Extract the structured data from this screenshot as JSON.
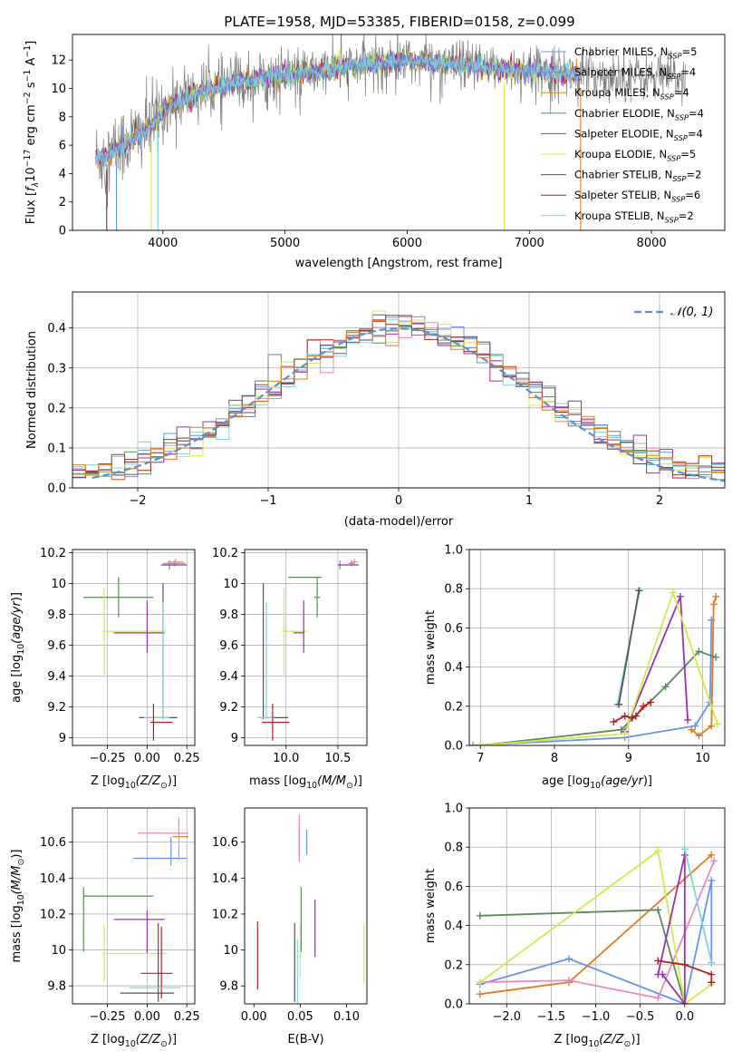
{
  "figure_title": "PLATE=1958, MJD=53385, FIBERID=0158, z=0.099",
  "colors": {
    "c_miles": "#6495ED",
    "s_miles": "#E07A1F",
    "k_miles": "#E8890C",
    "c_elodie": "#5C8A5C",
    "s_elodie": "#9B30B0",
    "k_elodie": "#D4E84A",
    "c_stelib": "#555555",
    "s_stelib": "#B22222",
    "k_stelib": "#7FD4DD",
    "data": "#808080",
    "normal": "#5B8FD6",
    "pink": "#E888C0"
  },
  "chart_data": [
    {
      "id": "spectrum",
      "type": "line",
      "xlabel": "wavelength [Angstrom, rest frame]",
      "ylabel": "Flux [fλ10⁻¹⁷ erg cm⁻² s⁻¹ A⁻¹]",
      "xlim": [
        3260,
        8600
      ],
      "ylim": [
        0,
        13.8
      ],
      "xticks": [
        4000,
        5000,
        6000,
        7000,
        8000
      ],
      "yticks": [
        0,
        2,
        4,
        6,
        8,
        10,
        12
      ],
      "continuum": {
        "x": [
          3450,
          3550,
          3700,
          3900,
          4000,
          4200,
          4400,
          4600,
          4800,
          5000,
          5200,
          5500,
          5800,
          6000,
          6300,
          6600,
          7000,
          7400
        ],
        "y": [
          5.1,
          5.3,
          6.2,
          7.3,
          8.5,
          9.4,
          10.0,
          10.4,
          10.7,
          10.9,
          11.1,
          11.5,
          11.8,
          12.0,
          11.7,
          11.5,
          11.3,
          11.0
        ]
      },
      "model_end": 7420,
      "data_end": 8280,
      "legend": [
        {
          "label": "Chabrier MILES, N",
          "sub": "SSP",
          "val": "=5"
        },
        {
          "label": "Salpeter MILES, N",
          "sub": "SSP",
          "val": "=4"
        },
        {
          "label": "Kroupa MILES, N",
          "sub": "SSP",
          "val": "=4"
        },
        {
          "label": "Chabrier ELODIE, N",
          "sub": "SSP",
          "val": "=4"
        },
        {
          "label": "Salpeter ELODIE, N",
          "sub": "SSP",
          "val": "=4"
        },
        {
          "label": "Kroupa ELODIE, N",
          "sub": "SSP",
          "val": "=5"
        },
        {
          "label": "Chabrier STELIB, N",
          "sub": "SSP",
          "val": "=2"
        },
        {
          "label": "Salpeter STELIB, N",
          "sub": "SSP",
          "val": "=6"
        },
        {
          "label": "Kroupa STELIB, N",
          "sub": "SSP",
          "val": "=2"
        }
      ]
    },
    {
      "id": "residuals",
      "type": "line",
      "xlabel": "(data-model)/error",
      "ylabel": "Normed distribution",
      "xlim": [
        -2.5,
        2.5
      ],
      "ylim": [
        0,
        0.49
      ],
      "xticks": [
        -2,
        -1,
        0,
        1,
        2
      ],
      "xticklabels": [
        "−2",
        "−1",
        "0",
        "1",
        "2"
      ],
      "yticks": [
        0.0,
        0.1,
        0.2,
        0.3,
        0.4
      ],
      "yticklabels": [
        "0.0",
        "0.1",
        "0.2",
        "0.3",
        "0.4"
      ],
      "grid": true,
      "legend": "𝒩(0, 1)",
      "bin_width": 0.1
    },
    {
      "id": "age_vs_Z",
      "type": "scatter",
      "xlabel": "Z [log₁₀(Z/Z⊙)]",
      "ylabel": "age  [log₁₀(age/yr)]",
      "xlim": [
        -0.47,
        0.3
      ],
      "ylim": [
        8.95,
        10.22
      ],
      "xticks": [
        -0.25,
        0.0,
        0.25
      ],
      "xticklabels": [
        "−0.25",
        "0.00",
        "0.25"
      ],
      "yticks": [
        9.0,
        9.2,
        9.4,
        9.6,
        9.8,
        10.0,
        10.2
      ],
      "grid": true,
      "points": [
        {
          "s": "c_elodie",
          "x": -0.18,
          "xerr": 0.22,
          "y": 9.91,
          "yerr": 0.13
        },
        {
          "s": "k_elodie",
          "x": -0.27,
          "xerr": 0.0,
          "y": 9.69,
          "yerr": 0.28
        },
        {
          "s": "k_elodie",
          "x": -0.08,
          "xerr": 0.2,
          "y": 9.69,
          "yerr": 0.0
        },
        {
          "s": "s_elodie",
          "x": -0.05,
          "xerr": 0.16,
          "y": 9.68,
          "yerr": 0.0
        },
        {
          "s": "s_elodie",
          "x": 0.0,
          "xerr": 0.0,
          "y": 9.72,
          "yerr": 0.17
        },
        {
          "s": "c_stelib",
          "x": 0.1,
          "xerr": 0.0,
          "y": 9.56,
          "yerr": 0.44
        },
        {
          "s": "k_stelib",
          "x": 0.1,
          "xerr": 0.0,
          "y": 9.5,
          "yerr": 0.38
        },
        {
          "s": "c_stelib",
          "x": 0.07,
          "xerr": 0.12,
          "y": 9.13,
          "yerr": 0.0
        },
        {
          "s": "k_stelib",
          "x": 0.06,
          "xerr": 0.08,
          "y": 9.13,
          "yerr": 0.0
        },
        {
          "s": "s_stelib",
          "x": 0.04,
          "xerr": 0.0,
          "y": 9.1,
          "yerr": 0.12
        },
        {
          "s": "s_stelib",
          "x": 0.09,
          "xerr": 0.07,
          "y": 9.1,
          "yerr": 0.0
        },
        {
          "s": "s_miles",
          "x": 0.17,
          "xerr": 0.07,
          "y": 10.13,
          "yerr": 0.02
        },
        {
          "s": "c_miles",
          "x": 0.14,
          "xerr": 0.05,
          "y": 10.12,
          "yerr": 0.03
        },
        {
          "s": "pink",
          "x": 0.18,
          "xerr": 0.05,
          "y": 10.14,
          "yerr": 0.02
        },
        {
          "s": "s_elodie",
          "x": 0.17,
          "xerr": 0.08,
          "y": 10.12,
          "yerr": 0.0
        }
      ]
    },
    {
      "id": "age_vs_mass",
      "type": "scatter",
      "xlabel": "mass [log₁₀(M/M⊙)]",
      "xlim": [
        9.6,
        10.78
      ],
      "ylim": [
        8.95,
        10.22
      ],
      "xticks": [
        10.0,
        10.5
      ],
      "xticklabels": [
        "10.0",
        "10.5"
      ],
      "yticks": [
        9.0,
        9.2,
        9.4,
        9.6,
        9.8,
        10.0,
        10.2
      ],
      "grid": true,
      "points": [
        {
          "s": "c_elodie",
          "x": 10.3,
          "xerr": 0.03,
          "y": 9.91,
          "yerr": 0.13
        },
        {
          "s": "c_elodie",
          "x": 10.18,
          "xerr": 0.16,
          "y": 10.04,
          "yerr": 0.0
        },
        {
          "s": "k_elodie",
          "x": 9.98,
          "xerr": 0.0,
          "y": 9.69,
          "yerr": 0.28
        },
        {
          "s": "k_elodie",
          "x": 10.08,
          "xerr": 0.12,
          "y": 9.69,
          "yerr": 0.0
        },
        {
          "s": "s_elodie",
          "x": 10.17,
          "xerr": 0.0,
          "y": 9.72,
          "yerr": 0.17
        },
        {
          "s": "s_elodie",
          "x": 10.12,
          "xerr": 0.05,
          "y": 9.68,
          "yerr": 0.0
        },
        {
          "s": "c_stelib",
          "x": 9.78,
          "xerr": 0.0,
          "y": 9.56,
          "yerr": 0.44
        },
        {
          "s": "k_stelib",
          "x": 9.81,
          "xerr": 0.0,
          "y": 9.5,
          "yerr": 0.38
        },
        {
          "s": "c_stelib",
          "x": 9.88,
          "xerr": 0.14,
          "y": 9.13,
          "yerr": 0.0
        },
        {
          "s": "k_stelib",
          "x": 9.8,
          "xerr": 0.08,
          "y": 9.13,
          "yerr": 0.0
        },
        {
          "s": "s_stelib",
          "x": 9.87,
          "xerr": 0.0,
          "y": 9.1,
          "yerr": 0.12
        },
        {
          "s": "s_stelib",
          "x": 9.9,
          "xerr": 0.13,
          "y": 9.1,
          "yerr": 0.0
        },
        {
          "s": "s_miles",
          "x": 10.63,
          "xerr": 0.03,
          "y": 10.13,
          "yerr": 0.02
        },
        {
          "s": "c_miles",
          "x": 10.52,
          "xerr": 0.02,
          "y": 10.12,
          "yerr": 0.03
        },
        {
          "s": "pink",
          "x": 10.66,
          "xerr": 0.03,
          "y": 10.14,
          "yerr": 0.02
        },
        {
          "s": "s_elodie",
          "x": 10.6,
          "xerr": 0.1,
          "y": 10.12,
          "yerr": 0.0
        }
      ]
    },
    {
      "id": "mass_weight_vs_age",
      "type": "line",
      "xlabel": "age  [log₁₀(age/yr)]",
      "ylabel": "mass weight",
      "xlim": [
        6.85,
        10.3
      ],
      "ylim": [
        0,
        1.0
      ],
      "xticks": [
        7,
        8,
        9,
        10
      ],
      "yticks": [
        0.0,
        0.2,
        0.4,
        0.6,
        0.8,
        1.0
      ],
      "yticklabels": [
        "0.0",
        "0.2",
        "0.4",
        "0.6",
        "0.8",
        "1.0"
      ],
      "grid": true,
      "series": [
        {
          "s": "c_miles",
          "x": [
            6.9,
            8.95,
            9.9,
            10.1,
            10.12
          ],
          "y": [
            0.0,
            0.04,
            0.1,
            0.22,
            0.64
          ]
        },
        {
          "s": "s_miles",
          "x": [
            9.85,
            9.95,
            10.12,
            10.15,
            10.18
          ],
          "y": [
            0.08,
            0.05,
            0.1,
            0.72,
            0.76
          ]
        },
        {
          "s": "c_elodie",
          "x": [
            7.0,
            8.9,
            9.5,
            9.95,
            10.18
          ],
          "y": [
            0.0,
            0.08,
            0.3,
            0.48,
            0.45
          ]
        },
        {
          "s": "s_elodie",
          "x": [
            8.95,
            9.7,
            9.8
          ],
          "y": [
            0.07,
            0.76,
            0.13
          ]
        },
        {
          "s": "k_elodie",
          "x": [
            7.0,
            8.95,
            9.6,
            10.2
          ],
          "y": [
            0.0,
            0.06,
            0.78,
            0.11
          ]
        },
        {
          "s": "s_stelib",
          "x": [
            8.8,
            8.95,
            9.05,
            9.1,
            9.2,
            9.3
          ],
          "y": [
            0.12,
            0.15,
            0.14,
            0.15,
            0.2,
            0.22
          ]
        },
        {
          "s": "k_stelib",
          "x": [
            8.85,
            9.15
          ],
          "y": [
            0.21,
            0.79
          ]
        },
        {
          "s": "c_stelib",
          "x": [
            8.87,
            9.14
          ],
          "y": [
            0.21,
            0.79
          ]
        }
      ]
    },
    {
      "id": "mass_vs_Z",
      "type": "scatter",
      "xlabel": "Z [log₁₀(Z/Z⊙)]",
      "ylabel": "mass [log₁₀(M/M⊙)]",
      "xlim": [
        -0.47,
        0.3
      ],
      "ylim": [
        9.7,
        10.79
      ],
      "xticks": [
        -0.25,
        0.0,
        0.25
      ],
      "xticklabels": [
        "−0.25",
        "0.00",
        "0.25"
      ],
      "yticks": [
        9.8,
        10.0,
        10.2,
        10.4,
        10.6
      ],
      "grid": true,
      "points": [
        {
          "s": "c_elodie",
          "x": -0.18,
          "xerr": 0.22,
          "y": 10.3,
          "yerr": 0.0
        },
        {
          "s": "c_elodie",
          "x": -0.4,
          "xerr": 0.0,
          "y": 10.17,
          "yerr": 0.18
        },
        {
          "s": "s_elodie",
          "x": -0.05,
          "xerr": 0.16,
          "y": 10.17,
          "yerr": 0.0
        },
        {
          "s": "s_elodie",
          "x": 0.0,
          "xerr": 0.0,
          "y": 10.1,
          "yerr": 0.12
        },
        {
          "s": "k_elodie",
          "x": -0.08,
          "xerr": 0.2,
          "y": 9.98,
          "yerr": 0.0
        },
        {
          "s": "k_elodie",
          "x": -0.27,
          "xerr": 0.0,
          "y": 9.98,
          "yerr": 0.16
        },
        {
          "s": "c_stelib",
          "x": 0.07,
          "xerr": 0.0,
          "y": 9.93,
          "yerr": 0.22
        },
        {
          "s": "s_stelib",
          "x": 0.09,
          "xerr": 0.0,
          "y": 9.93,
          "yerr": 0.2
        },
        {
          "s": "s_stelib",
          "x": 0.06,
          "xerr": 0.1,
          "y": 9.87,
          "yerr": 0.0
        },
        {
          "s": "k_stelib",
          "x": 0.05,
          "xerr": 0.16,
          "y": 9.79,
          "yerr": 0.0
        },
        {
          "s": "c_stelib",
          "x": 0.0,
          "xerr": 0.17,
          "y": 9.76,
          "yerr": 0.0
        },
        {
          "s": "c_miles",
          "x": 0.08,
          "xerr": 0.17,
          "y": 10.51,
          "yerr": 0.0
        },
        {
          "s": "c_miles",
          "x": 0.15,
          "xerr": 0.0,
          "y": 10.55,
          "yerr": 0.08
        },
        {
          "s": "s_miles",
          "x": 0.21,
          "xerr": 0.05,
          "y": 10.63,
          "yerr": 0.0
        },
        {
          "s": "pink",
          "x": 0.1,
          "xerr": 0.16,
          "y": 10.65,
          "yerr": 0.0
        },
        {
          "s": "pink",
          "x": 0.2,
          "xerr": 0.0,
          "y": 10.62,
          "yerr": 0.12
        }
      ]
    },
    {
      "id": "mass_vs_ebv",
      "type": "scatter",
      "xlabel": "E(B-V)",
      "xlim": [
        -0.01,
        0.122
      ],
      "ylim": [
        9.7,
        10.79
      ],
      "xticks": [
        0.0,
        0.05,
        0.1
      ],
      "xticklabels": [
        "0.00",
        "0.05",
        "0.10"
      ],
      "yticks": [
        9.8,
        10.0,
        10.2,
        10.4,
        10.6
      ],
      "grid": false,
      "points": [
        {
          "s": "s_stelib",
          "x": 0.004,
          "xerr": 0.0,
          "y": 9.97,
          "yerr": 0.19
        },
        {
          "s": "c_stelib",
          "x": 0.044,
          "xerr": 0.0,
          "y": 9.93,
          "yerr": 0.22
        },
        {
          "s": "k_stelib",
          "x": 0.047,
          "xerr": 0.0,
          "y": 9.88,
          "yerr": 0.18
        },
        {
          "s": "c_elodie",
          "x": 0.051,
          "xerr": 0.0,
          "y": 10.17,
          "yerr": 0.18
        },
        {
          "s": "k_elodie",
          "x": 0.05,
          "xerr": 0.0,
          "y": 10.0,
          "yerr": 0.15
        },
        {
          "s": "s_elodie",
          "x": 0.066,
          "xerr": 0.0,
          "y": 10.12,
          "yerr": 0.16
        },
        {
          "s": "s_miles",
          "x": 0.049,
          "xerr": 0.0,
          "y": 10.6,
          "yerr": 0.08
        },
        {
          "s": "pink",
          "x": 0.049,
          "xerr": 0.0,
          "y": 10.62,
          "yerr": 0.13
        },
        {
          "s": "c_miles",
          "x": 0.057,
          "xerr": 0.0,
          "y": 10.6,
          "yerr": 0.07
        },
        {
          "s": "k_elodie",
          "x": 0.119,
          "xerr": 0.0,
          "y": 9.98,
          "yerr": 0.16
        }
      ]
    },
    {
      "id": "mass_weight_vs_Z",
      "type": "line",
      "xlabel": "Z [log₁₀(Z/Z⊙)]",
      "ylabel": "mass weight",
      "xlim": [
        -2.42,
        0.45
      ],
      "ylim": [
        0,
        1.0
      ],
      "xticks": [
        -2.0,
        -1.5,
        -1.0,
        -0.5,
        0.0
      ],
      "xticklabels": [
        "−2.0",
        "−1.5",
        "−1.0",
        "−0.5",
        "0.0"
      ],
      "yticks": [
        0.0,
        0.2,
        0.4,
        0.6,
        0.8,
        1.0
      ],
      "yticklabels": [
        "0.0",
        "0.2",
        "0.4",
        "0.6",
        "0.8",
        "1.0"
      ],
      "grid": true,
      "series": [
        {
          "s": "c_miles",
          "x": [
            -2.3,
            -1.3,
            0.0,
            0.3,
            0.3
          ],
          "y": [
            0.1,
            0.23,
            0.0,
            0.63,
            0.21
          ]
        },
        {
          "s": "s_miles",
          "x": [
            -2.3,
            -1.3,
            0.3
          ],
          "y": [
            0.05,
            0.11,
            0.76
          ]
        },
        {
          "s": "pink",
          "x": [
            -2.3,
            -1.3,
            -0.3,
            0.33
          ],
          "y": [
            0.11,
            0.12,
            0.03,
            0.73
          ]
        },
        {
          "s": "c_elodie",
          "x": [
            -2.3,
            -0.3,
            0.0
          ],
          "y": [
            0.45,
            0.48,
            0.0
          ]
        },
        {
          "s": "k_elodie",
          "x": [
            -2.3,
            -0.3,
            0.0,
            0.3
          ],
          "y": [
            0.11,
            0.78,
            0.0,
            0.1
          ]
        },
        {
          "s": "s_elodie",
          "x": [
            -0.3,
            0.0,
            0.0,
            -0.25
          ],
          "y": [
            0.15,
            0.76,
            0.0,
            0.15
          ]
        },
        {
          "s": "s_stelib",
          "x": [
            -0.3,
            0.0,
            0.3,
            0.3
          ],
          "y": [
            0.22,
            0.2,
            0.15,
            0.11
          ]
        },
        {
          "s": "k_stelib",
          "x": [
            0.0,
            0.3
          ],
          "y": [
            0.79,
            0.21
          ]
        }
      ]
    }
  ]
}
